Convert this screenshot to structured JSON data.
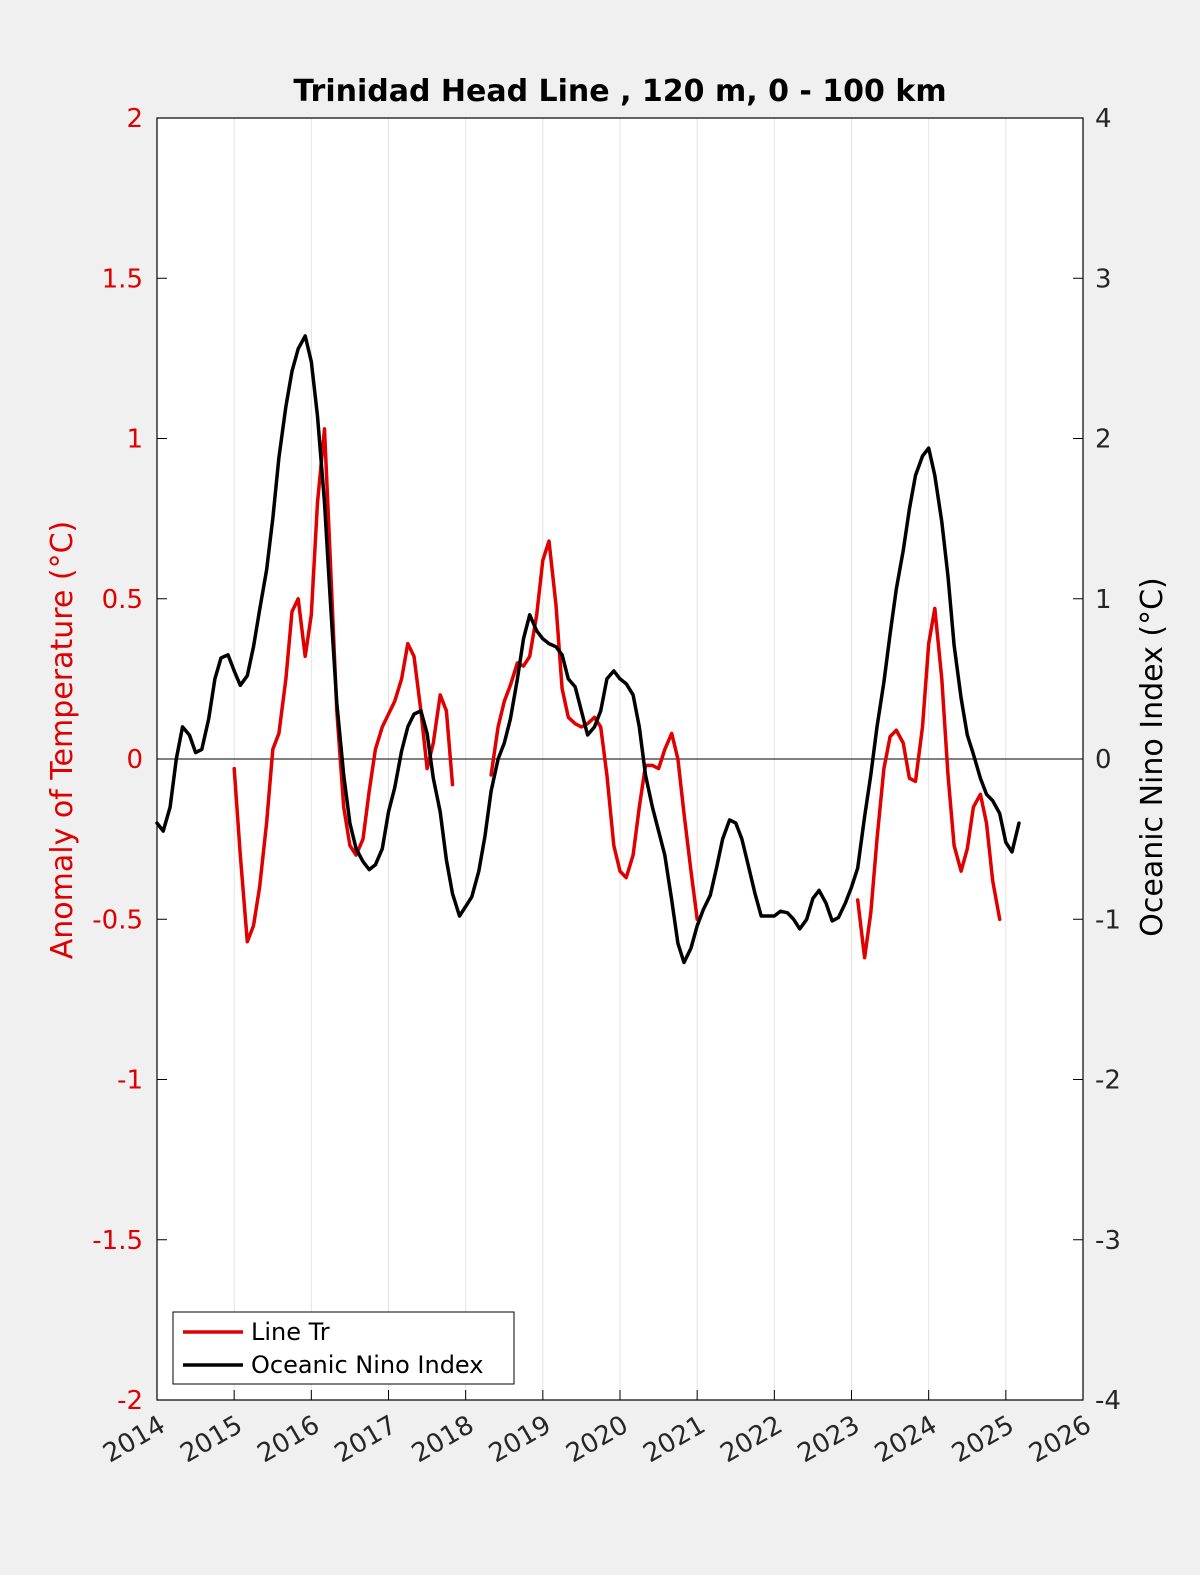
{
  "chart_data": {
    "type": "line",
    "title": "Trinidad Head Line , 120 m, 0 - 100 km",
    "ylabel_left": "Anomaly of Temperature (°C)",
    "ylabel_right": "Oceanic Nino Index (°C)",
    "xlabel": "",
    "xlim": [
      2014,
      2026
    ],
    "ylim_left": [
      -2,
      2
    ],
    "ylim_right": [
      -4,
      4
    ],
    "x_ticks": [
      "2014",
      "2015",
      "2016",
      "2017",
      "2018",
      "2019",
      "2020",
      "2021",
      "2022",
      "2023",
      "2024",
      "2025",
      "2026"
    ],
    "y_ticks_left": [
      "2",
      "1.5",
      "1",
      "0.5",
      "0",
      "-0.5",
      "-1",
      "-1.5",
      "-2"
    ],
    "y_ticks_right": [
      "4",
      "3",
      "2",
      "1",
      "0",
      "-1",
      "-2",
      "-3",
      "-4"
    ],
    "grid": "vertical",
    "zero_line": true,
    "legend": {
      "position": "bottom-left"
    },
    "colors": {
      "line_tr": "#e00000",
      "oni": "#000000",
      "left_axis": "#e00000",
      "right_axis": "#000000"
    },
    "series": [
      {
        "name": "Line Tr",
        "axis": "left",
        "color": "#e00000",
        "segments": [
          [
            [
              2015.0,
              -0.03
            ],
            [
              2015.08,
              -0.3
            ],
            [
              2015.17,
              -0.57
            ],
            [
              2015.25,
              -0.52
            ],
            [
              2015.33,
              -0.4
            ],
            [
              2015.42,
              -0.2
            ],
            [
              2015.5,
              0.03
            ],
            [
              2015.58,
              0.08
            ],
            [
              2015.67,
              0.25
            ],
            [
              2015.75,
              0.46
            ],
            [
              2015.83,
              0.5
            ],
            [
              2015.92,
              0.32
            ],
            [
              2016.0,
              0.45
            ],
            [
              2016.08,
              0.8
            ],
            [
              2016.17,
              1.03
            ],
            [
              2016.25,
              0.6
            ],
            [
              2016.33,
              0.15
            ],
            [
              2016.42,
              -0.15
            ],
            [
              2016.5,
              -0.27
            ],
            [
              2016.58,
              -0.3
            ],
            [
              2016.67,
              -0.25
            ],
            [
              2016.75,
              -0.1
            ],
            [
              2016.83,
              0.03
            ],
            [
              2016.92,
              0.1
            ],
            [
              2017.0,
              0.14
            ],
            [
              2017.08,
              0.18
            ],
            [
              2017.17,
              0.25
            ],
            [
              2017.25,
              0.36
            ],
            [
              2017.33,
              0.32
            ],
            [
              2017.42,
              0.15
            ],
            [
              2017.5,
              -0.03
            ],
            [
              2017.58,
              0.05
            ],
            [
              2017.67,
              0.2
            ],
            [
              2017.75,
              0.15
            ],
            [
              2017.83,
              -0.08
            ]
          ],
          [
            [
              2018.33,
              -0.05
            ],
            [
              2018.42,
              0.1
            ],
            [
              2018.5,
              0.18
            ],
            [
              2018.58,
              0.23
            ],
            [
              2018.67,
              0.3
            ],
            [
              2018.75,
              0.29
            ],
            [
              2018.83,
              0.32
            ],
            [
              2018.92,
              0.45
            ],
            [
              2019.0,
              0.62
            ],
            [
              2019.08,
              0.68
            ],
            [
              2019.17,
              0.48
            ],
            [
              2019.25,
              0.22
            ],
            [
              2019.33,
              0.13
            ],
            [
              2019.42,
              0.11
            ],
            [
              2019.5,
              0.1
            ],
            [
              2019.58,
              0.11
            ],
            [
              2019.67,
              0.13
            ],
            [
              2019.75,
              0.1
            ],
            [
              2019.83,
              -0.05
            ],
            [
              2019.92,
              -0.27
            ],
            [
              2020.0,
              -0.35
            ],
            [
              2020.08,
              -0.37
            ],
            [
              2020.17,
              -0.3
            ],
            [
              2020.25,
              -0.15
            ],
            [
              2020.33,
              -0.02
            ],
            [
              2020.42,
              -0.02
            ],
            [
              2020.5,
              -0.03
            ],
            [
              2020.58,
              0.03
            ],
            [
              2020.67,
              0.08
            ],
            [
              2020.75,
              0.0
            ],
            [
              2020.83,
              -0.17
            ],
            [
              2020.92,
              -0.35
            ],
            [
              2021.0,
              -0.5
            ]
          ],
          [
            [
              2023.08,
              -0.44
            ],
            [
              2023.17,
              -0.62
            ],
            [
              2023.25,
              -0.48
            ],
            [
              2023.33,
              -0.25
            ],
            [
              2023.42,
              -0.03
            ],
            [
              2023.5,
              0.07
            ],
            [
              2023.58,
              0.09
            ],
            [
              2023.67,
              0.05
            ],
            [
              2023.75,
              -0.06
            ],
            [
              2023.83,
              -0.07
            ],
            [
              2023.92,
              0.1
            ],
            [
              2024.0,
              0.36
            ],
            [
              2024.08,
              0.47
            ],
            [
              2024.17,
              0.25
            ],
            [
              2024.25,
              -0.05
            ],
            [
              2024.33,
              -0.27
            ],
            [
              2024.42,
              -0.35
            ],
            [
              2024.5,
              -0.28
            ],
            [
              2024.58,
              -0.15
            ],
            [
              2024.67,
              -0.11
            ],
            [
              2024.75,
              -0.2
            ],
            [
              2024.83,
              -0.38
            ],
            [
              2024.92,
              -0.5
            ]
          ]
        ]
      },
      {
        "name": "Oceanic Nino Index",
        "axis": "right",
        "color": "#000000",
        "segments": [
          [
            [
              2014.0,
              -0.4
            ],
            [
              2014.08,
              -0.45
            ],
            [
              2014.17,
              -0.3
            ],
            [
              2014.25,
              0.0
            ],
            [
              2014.33,
              0.2
            ],
            [
              2014.42,
              0.15
            ],
            [
              2014.5,
              0.04
            ],
            [
              2014.58,
              0.06
            ],
            [
              2014.67,
              0.25
            ],
            [
              2014.75,
              0.5
            ],
            [
              2014.83,
              0.63
            ],
            [
              2014.92,
              0.65
            ],
            [
              2015.0,
              0.55
            ],
            [
              2015.08,
              0.46
            ],
            [
              2015.17,
              0.52
            ],
            [
              2015.25,
              0.7
            ],
            [
              2015.33,
              0.93
            ],
            [
              2015.42,
              1.18
            ],
            [
              2015.5,
              1.5
            ],
            [
              2015.58,
              1.88
            ],
            [
              2015.67,
              2.2
            ],
            [
              2015.75,
              2.42
            ],
            [
              2015.83,
              2.56
            ],
            [
              2015.92,
              2.64
            ],
            [
              2016.0,
              2.48
            ],
            [
              2016.08,
              2.14
            ],
            [
              2016.17,
              1.6
            ],
            [
              2016.25,
              0.96
            ],
            [
              2016.33,
              0.35
            ],
            [
              2016.42,
              -0.1
            ],
            [
              2016.5,
              -0.4
            ],
            [
              2016.58,
              -0.56
            ],
            [
              2016.67,
              -0.64
            ],
            [
              2016.75,
              -0.69
            ],
            [
              2016.83,
              -0.66
            ],
            [
              2016.92,
              -0.56
            ],
            [
              2017.0,
              -0.33
            ],
            [
              2017.08,
              -0.18
            ],
            [
              2017.17,
              0.05
            ],
            [
              2017.25,
              0.2
            ],
            [
              2017.33,
              0.28
            ],
            [
              2017.42,
              0.3
            ],
            [
              2017.5,
              0.16
            ],
            [
              2017.58,
              -0.12
            ],
            [
              2017.67,
              -0.33
            ],
            [
              2017.75,
              -0.63
            ],
            [
              2017.83,
              -0.84
            ],
            [
              2017.92,
              -0.98
            ],
            [
              2018.0,
              -0.92
            ],
            [
              2018.08,
              -0.86
            ],
            [
              2018.17,
              -0.7
            ],
            [
              2018.25,
              -0.48
            ],
            [
              2018.33,
              -0.2
            ],
            [
              2018.42,
              0.0
            ],
            [
              2018.5,
              0.1
            ],
            [
              2018.58,
              0.25
            ],
            [
              2018.67,
              0.5
            ],
            [
              2018.75,
              0.75
            ],
            [
              2018.83,
              0.9
            ],
            [
              2018.92,
              0.8
            ],
            [
              2019.0,
              0.75
            ],
            [
              2019.08,
              0.72
            ],
            [
              2019.17,
              0.7
            ],
            [
              2019.25,
              0.65
            ],
            [
              2019.33,
              0.5
            ],
            [
              2019.42,
              0.45
            ],
            [
              2019.5,
              0.3
            ],
            [
              2019.58,
              0.15
            ],
            [
              2019.67,
              0.2
            ],
            [
              2019.75,
              0.3
            ],
            [
              2019.83,
              0.5
            ],
            [
              2019.92,
              0.55
            ],
            [
              2020.0,
              0.5
            ],
            [
              2020.08,
              0.47
            ],
            [
              2020.17,
              0.4
            ],
            [
              2020.25,
              0.2
            ],
            [
              2020.33,
              -0.1
            ],
            [
              2020.42,
              -0.3
            ],
            [
              2020.5,
              -0.45
            ],
            [
              2020.58,
              -0.6
            ],
            [
              2020.67,
              -0.88
            ],
            [
              2020.75,
              -1.15
            ],
            [
              2020.83,
              -1.27
            ],
            [
              2020.92,
              -1.18
            ],
            [
              2021.0,
              -1.04
            ],
            [
              2021.08,
              -0.94
            ],
            [
              2021.17,
              -0.85
            ],
            [
              2021.25,
              -0.68
            ],
            [
              2021.33,
              -0.5
            ],
            [
              2021.42,
              -0.38
            ],
            [
              2021.5,
              -0.4
            ],
            [
              2021.58,
              -0.5
            ],
            [
              2021.67,
              -0.68
            ],
            [
              2021.75,
              -0.84
            ],
            [
              2021.83,
              -0.98
            ],
            [
              2021.92,
              -0.98
            ],
            [
              2022.0,
              -0.98
            ],
            [
              2022.08,
              -0.95
            ],
            [
              2022.17,
              -0.96
            ],
            [
              2022.25,
              -1.0
            ],
            [
              2022.33,
              -1.06
            ],
            [
              2022.42,
              -1.0
            ],
            [
              2022.5,
              -0.87
            ],
            [
              2022.58,
              -0.82
            ],
            [
              2022.67,
              -0.9
            ],
            [
              2022.75,
              -1.01
            ],
            [
              2022.83,
              -0.99
            ],
            [
              2022.92,
              -0.9
            ],
            [
              2023.0,
              -0.8
            ],
            [
              2023.08,
              -0.68
            ],
            [
              2023.17,
              -0.36
            ],
            [
              2023.25,
              -0.1
            ],
            [
              2023.33,
              0.2
            ],
            [
              2023.42,
              0.48
            ],
            [
              2023.5,
              0.78
            ],
            [
              2023.58,
              1.06
            ],
            [
              2023.67,
              1.3
            ],
            [
              2023.75,
              1.56
            ],
            [
              2023.83,
              1.77
            ],
            [
              2023.92,
              1.89
            ],
            [
              2024.0,
              1.94
            ],
            [
              2024.08,
              1.77
            ],
            [
              2024.17,
              1.48
            ],
            [
              2024.25,
              1.14
            ],
            [
              2024.33,
              0.71
            ],
            [
              2024.42,
              0.38
            ],
            [
              2024.5,
              0.15
            ],
            [
              2024.58,
              0.03
            ],
            [
              2024.67,
              -0.12
            ],
            [
              2024.75,
              -0.22
            ],
            [
              2024.83,
              -0.26
            ],
            [
              2024.92,
              -0.34
            ],
            [
              2025.0,
              -0.52
            ],
            [
              2025.08,
              -0.58
            ],
            [
              2025.17,
              -0.4
            ]
          ]
        ]
      }
    ]
  }
}
